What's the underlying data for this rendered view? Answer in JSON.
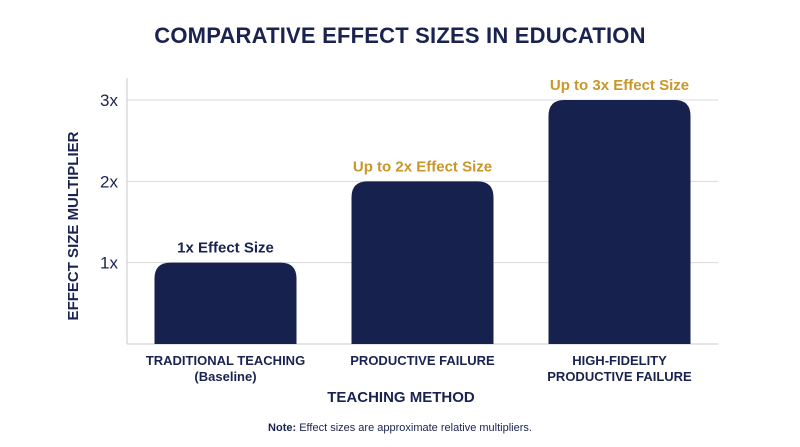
{
  "chart_data": {
    "type": "bar",
    "title": "COMPARATIVE EFFECT SIZES IN EDUCATION",
    "xlabel": "TEACHING METHOD",
    "ylabel": "EFFECT SIZE MULTIPLIER",
    "ylim": [
      0,
      3
    ],
    "y_ticks": [
      {
        "value": 1,
        "label": "1x"
      },
      {
        "value": 2,
        "label": "2x"
      },
      {
        "value": 3,
        "label": "3x"
      }
    ],
    "grid": true,
    "categories": [
      [
        "TRADITIONAL TEACHING",
        "(Baseline)"
      ],
      [
        "PRODUCTIVE FAILURE"
      ],
      [
        "HIGH-FIDELITY",
        "PRODUCTIVE FAILURE"
      ]
    ],
    "values": [
      1,
      2,
      3
    ],
    "data_labels": [
      "1x Effect Size",
      "Up to 2x Effect Size",
      "Up to 3x Effect Size"
    ],
    "bar_color": "#16214d",
    "data_label_colors": [
      "#1a2350",
      "#c9962a",
      "#c9962a"
    ],
    "note_prefix": "Note:",
    "note_text": " Effect sizes are approximate relative multipliers."
  }
}
